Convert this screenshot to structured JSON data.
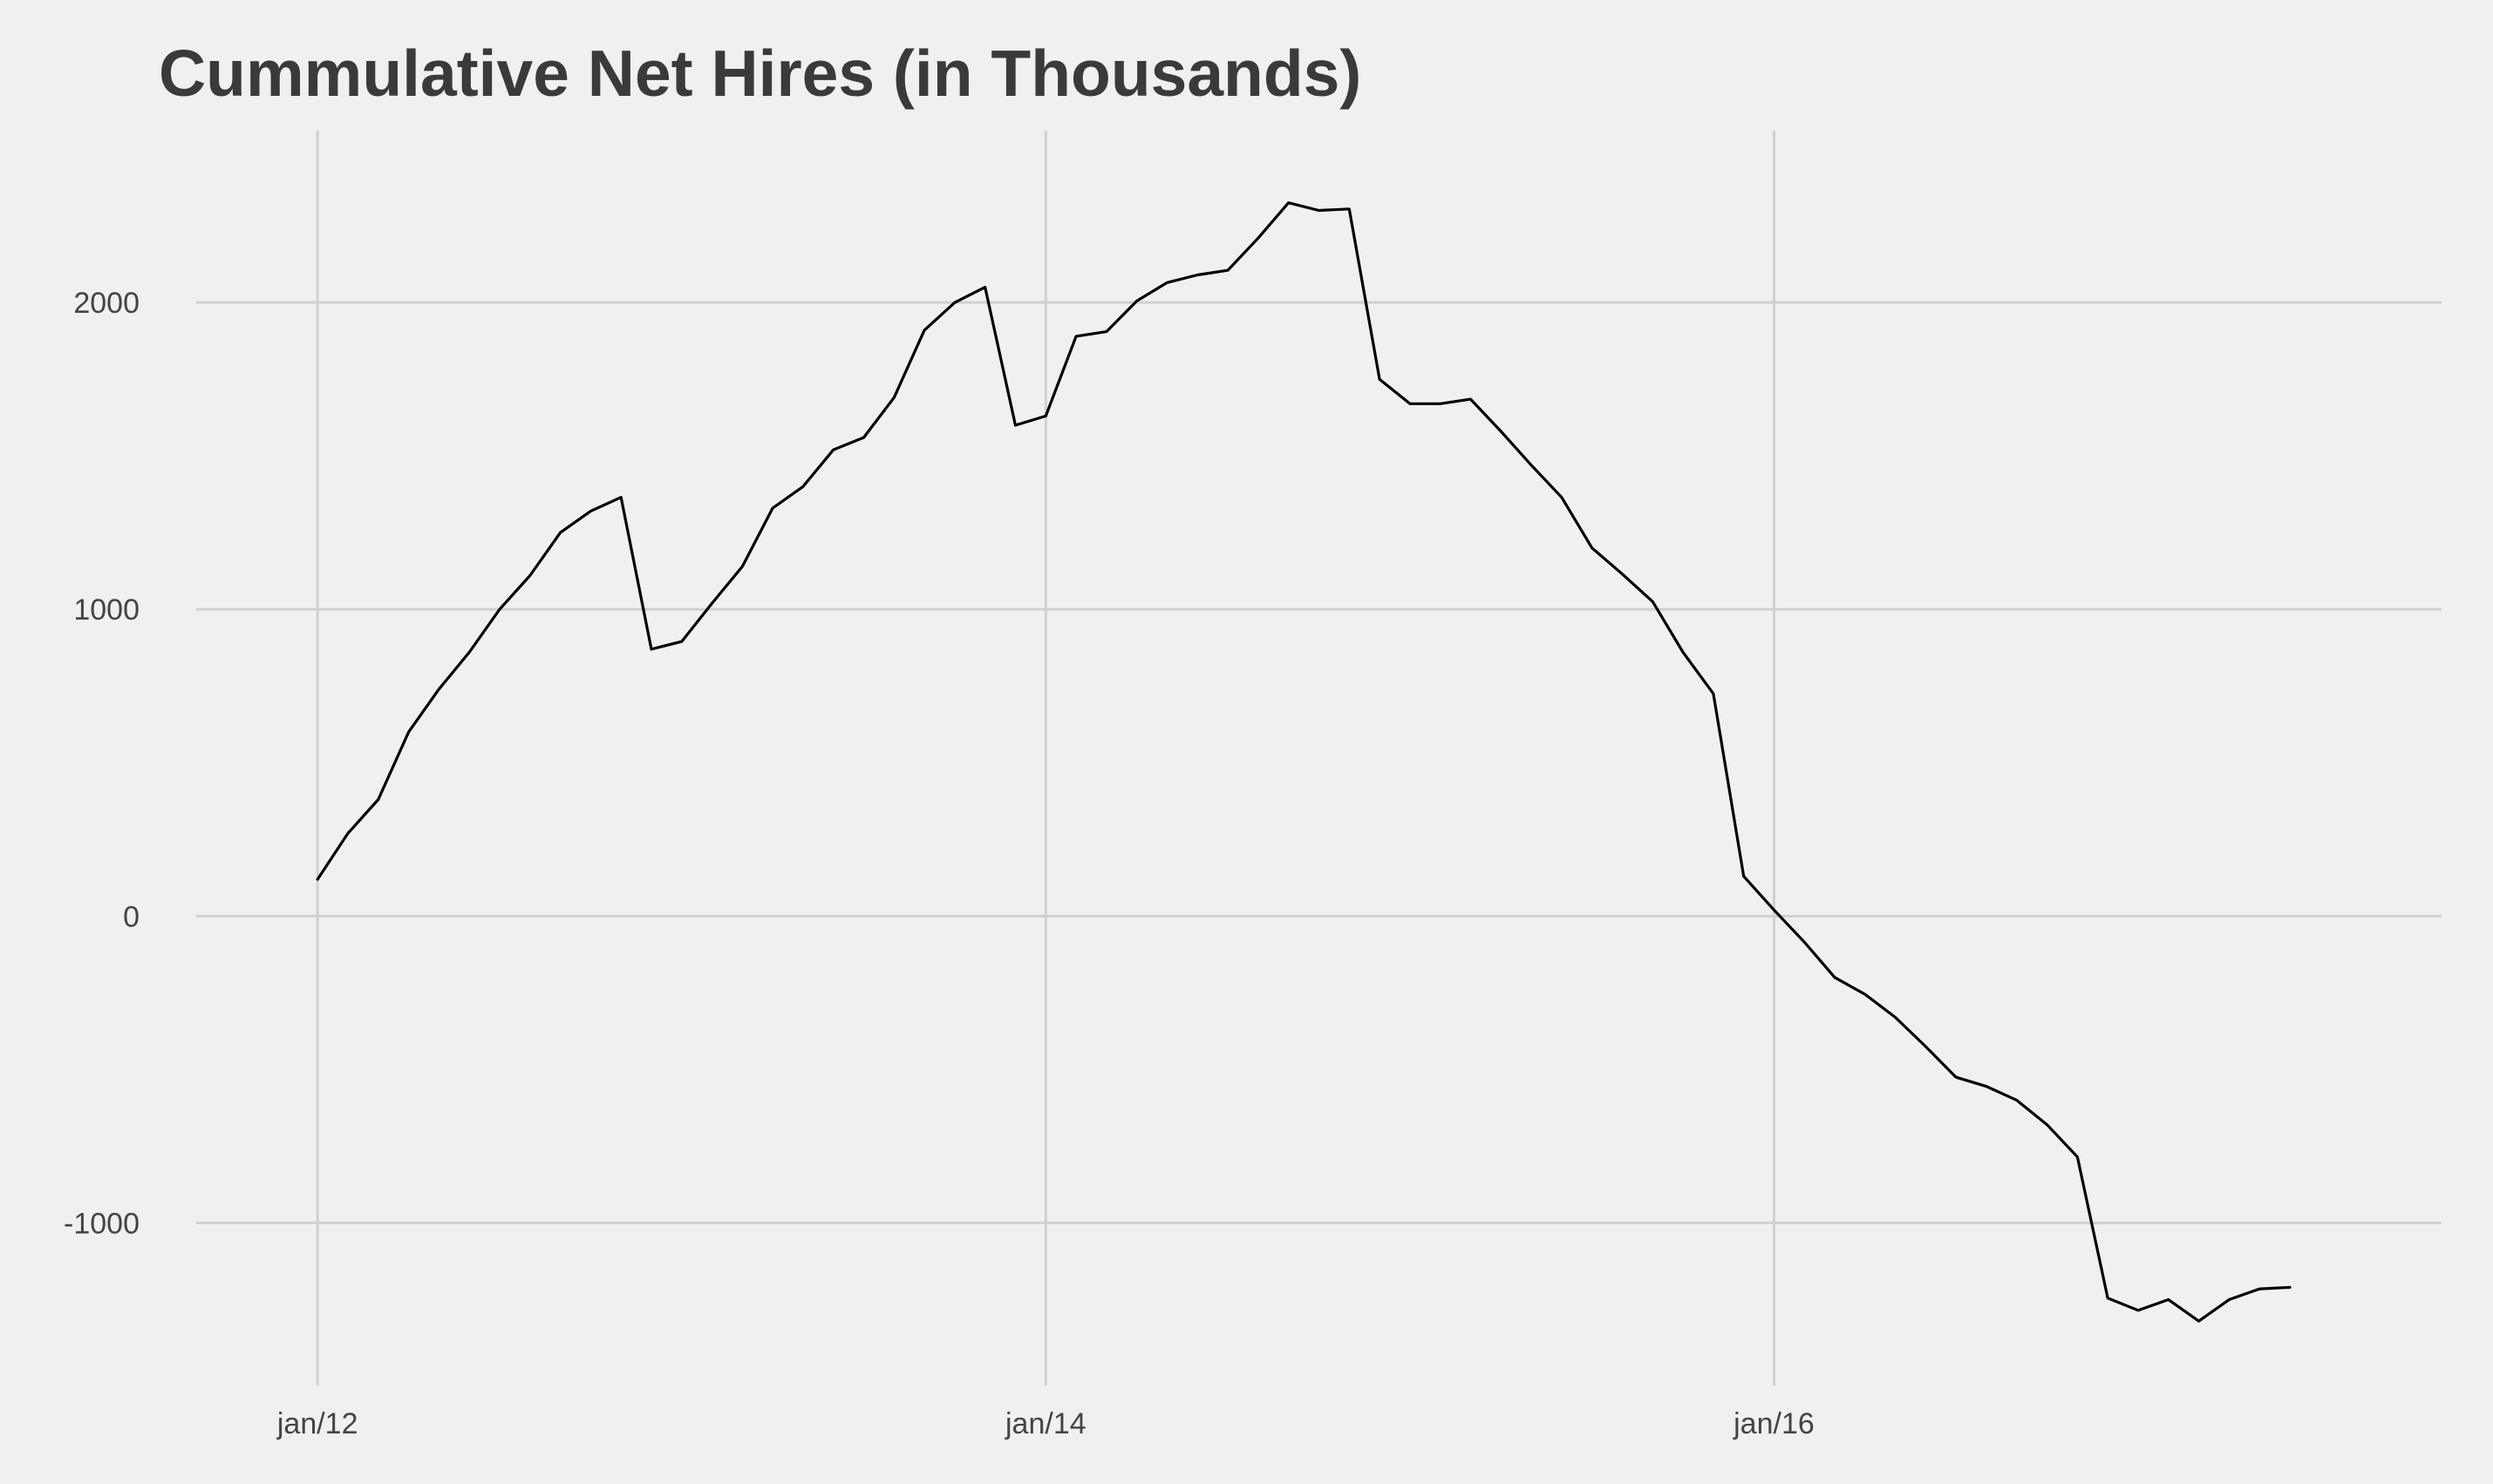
{
  "chart_data": {
    "type": "line",
    "title": "Cummulative Net Hires (in Thousands)",
    "xlabel": "",
    "ylabel": "",
    "x_tick_labels": [
      "jan/12",
      "jan/14",
      "jan/16"
    ],
    "y_tick_labels": [
      "-1000",
      "0",
      "1000",
      "2000"
    ],
    "y_ticks": [
      -1000,
      0,
      1000,
      2000
    ],
    "x_range": [
      "2011-09",
      "2017-11"
    ],
    "ylim": [
      -1530,
      2560
    ],
    "grid": true,
    "legend": "none",
    "line_color": "#000000",
    "series": [
      {
        "x": [
          "2012-01",
          "2012-02",
          "2012-03",
          "2012-04",
          "2012-05",
          "2012-06",
          "2012-07",
          "2012-08",
          "2012-09",
          "2012-10",
          "2012-11",
          "2012-12",
          "2013-01",
          "2013-02",
          "2013-03",
          "2013-04",
          "2013-05",
          "2013-06",
          "2013-07",
          "2013-08",
          "2013-09",
          "2013-10",
          "2013-11",
          "2013-12",
          "2014-01",
          "2014-02",
          "2014-03",
          "2014-04",
          "2014-05",
          "2014-06",
          "2014-07",
          "2014-08",
          "2014-09",
          "2014-10",
          "2014-11",
          "2014-12",
          "2015-01",
          "2015-02",
          "2015-03",
          "2015-04",
          "2015-05",
          "2015-06",
          "2015-07",
          "2015-08",
          "2015-09",
          "2015-10",
          "2015-11",
          "2015-12",
          "2016-01",
          "2016-02",
          "2016-03",
          "2016-04",
          "2016-05",
          "2016-06",
          "2016-07",
          "2016-08",
          "2016-09",
          "2016-10",
          "2016-11",
          "2016-12",
          "2017-01",
          "2017-02",
          "2017-03",
          "2017-04",
          "2017-05",
          "2017-06"
        ],
        "values": [
          120,
          270,
          380,
          600,
          740,
          860,
          1000,
          1110,
          1250,
          1320,
          1365,
          870,
          895,
          1020,
          1140,
          1330,
          1400,
          1520,
          1560,
          1690,
          1910,
          2000,
          2050,
          1600,
          1630,
          1890,
          1905,
          2005,
          2065,
          2090,
          2105,
          2210,
          2325,
          2300,
          2305,
          1750,
          1670,
          1670,
          1685,
          1580,
          1470,
          1365,
          1200,
          1115,
          1025,
          860,
          725,
          130,
          20,
          -85,
          -200,
          -255,
          -330,
          -425,
          -525,
          -555,
          -600,
          -680,
          -785,
          -1245,
          -1285,
          -1250,
          -1320,
          -1250,
          -1215,
          -1210
        ]
      }
    ]
  }
}
